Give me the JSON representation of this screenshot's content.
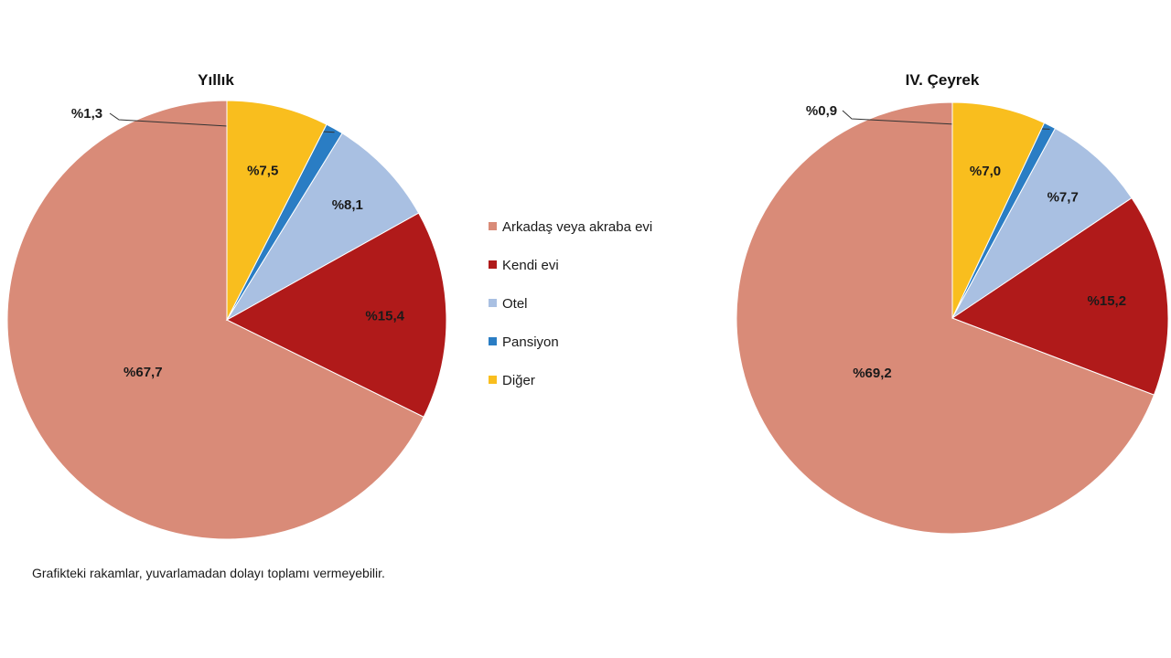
{
  "chart_data": [
    {
      "type": "pie",
      "title": "Yıllık",
      "categories": [
        "Arkadaş veya akraba evi",
        "Kendi evi",
        "Otel",
        "Pansiyon",
        "Diğer"
      ],
      "values": [
        67.7,
        15.4,
        8.1,
        1.3,
        7.5
      ],
      "data_labels": [
        "%67,7",
        "%15,4",
        "%8,1",
        "%1,3",
        "%7,5"
      ],
      "colors": [
        "#d98b78",
        "#b01a1a",
        "#a9c0e2",
        "#2a7dc4",
        "#f9be1e"
      ],
      "start_angle": "12 o'clock",
      "direction": "counterclockwise"
    },
    {
      "type": "pie",
      "title": "IV. Çeyrek",
      "categories": [
        "Arkadaş veya akraba evi",
        "Kendi evi",
        "Otel",
        "Pansiyon",
        "Diğer"
      ],
      "values": [
        69.2,
        15.2,
        7.7,
        0.9,
        7.0
      ],
      "data_labels": [
        "%69,2",
        "%15,2",
        "%7,7",
        "%0,9",
        "%7,0"
      ],
      "colors": [
        "#d98b78",
        "#b01a1a",
        "#a9c0e2",
        "#2a7dc4",
        "#f9be1e"
      ],
      "start_angle": "12 o'clock",
      "direction": "counterclockwise"
    }
  ],
  "legend": {
    "placement": "center",
    "items": [
      {
        "label": "Arkadaş veya akraba evi",
        "color": "#d98b78"
      },
      {
        "label": "Kendi evi",
        "color": "#b01a1a"
      },
      {
        "label": "Otel",
        "color": "#a9c0e2"
      },
      {
        "label": "Pansiyon",
        "color": "#2a7dc4"
      },
      {
        "label": "Diğer",
        "color": "#f9be1e"
      }
    ]
  },
  "footnote": "Grafikteki rakamlar, yuvarlamadan dolayı toplamı vermeyebilir."
}
